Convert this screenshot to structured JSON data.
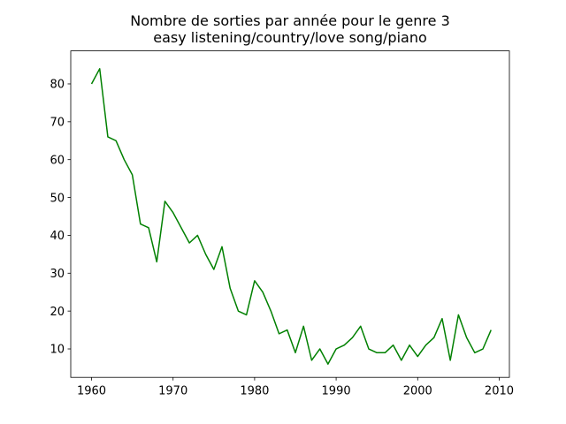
{
  "figure": {
    "background": "#ffffff"
  },
  "chart_data": {
    "type": "line",
    "title": "Nombre de sorties par année pour le genre 3\neasy listening/country/love song/piano",
    "title_line1": "Nombre de sorties par année pour le genre 3",
    "title_line2": "easy listening/country/love song/piano",
    "xlabel": "",
    "ylabel": "",
    "grid": false,
    "legend": null,
    "line_color": "#008000",
    "axis_color": "#000000",
    "x": [
      1960,
      1961,
      1962,
      1963,
      1964,
      1965,
      1966,
      1967,
      1968,
      1969,
      1970,
      1971,
      1972,
      1973,
      1974,
      1975,
      1976,
      1977,
      1978,
      1979,
      1980,
      1981,
      1982,
      1983,
      1984,
      1985,
      1986,
      1987,
      1988,
      1989,
      1990,
      1991,
      1992,
      1993,
      1994,
      1995,
      1996,
      1997,
      1998,
      1999,
      2000,
      2001,
      2002,
      2003,
      2004,
      2005,
      2006,
      2007,
      2008,
      2009
    ],
    "values": [
      80,
      84,
      66,
      65,
      60,
      56,
      43,
      42,
      33,
      49,
      46,
      42,
      38,
      40,
      35,
      31,
      37,
      26,
      20,
      19,
      28,
      25,
      20,
      14,
      15,
      9,
      16,
      7,
      10,
      6,
      10,
      11,
      13,
      16,
      10,
      9,
      9,
      11,
      7,
      11,
      8,
      11,
      13,
      18,
      7,
      19,
      13,
      9,
      10,
      15
    ],
    "xticks": [
      1960,
      1970,
      1980,
      1990,
      2000,
      2010
    ],
    "yticks": [
      10,
      20,
      30,
      40,
      50,
      60,
      70,
      80
    ],
    "xlim": [
      1957.45,
      2011.25
    ],
    "ylim": [
      2.49,
      88.72
    ]
  }
}
